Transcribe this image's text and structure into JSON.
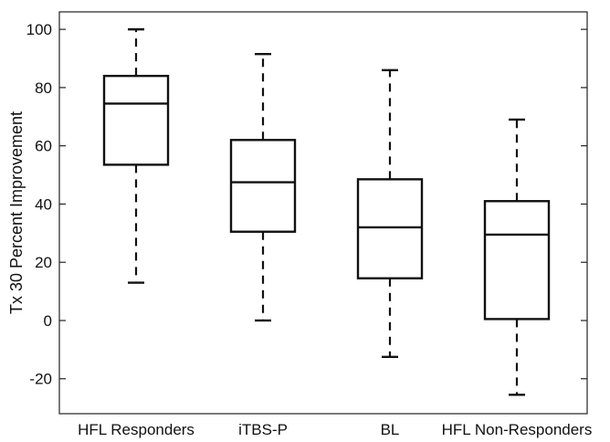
{
  "chart_data": {
    "type": "boxplot",
    "title": "",
    "xlabel": "",
    "ylabel": "Tx 30 Percent Improvement",
    "ylim": [
      -32,
      106
    ],
    "yticks": [
      -20,
      0,
      20,
      40,
      60,
      80,
      100
    ],
    "grid": false,
    "categories": [
      "HFL Responders",
      "iTBS-P",
      "BL",
      "HFL Non-Responders"
    ],
    "boxes": [
      {
        "whisker_low": 13,
        "q1": 53.5,
        "median": 74.5,
        "q3": 84,
        "whisker_high": 100
      },
      {
        "whisker_low": 0,
        "q1": 30.5,
        "median": 47.5,
        "q3": 62,
        "whisker_high": 91.5
      },
      {
        "whisker_low": -12.5,
        "q1": 14.5,
        "median": 32,
        "q3": 48.5,
        "whisker_high": 86
      },
      {
        "whisker_low": -25.5,
        "q1": 0.5,
        "median": 29.5,
        "q3": 41,
        "whisker_high": 69
      }
    ]
  }
}
